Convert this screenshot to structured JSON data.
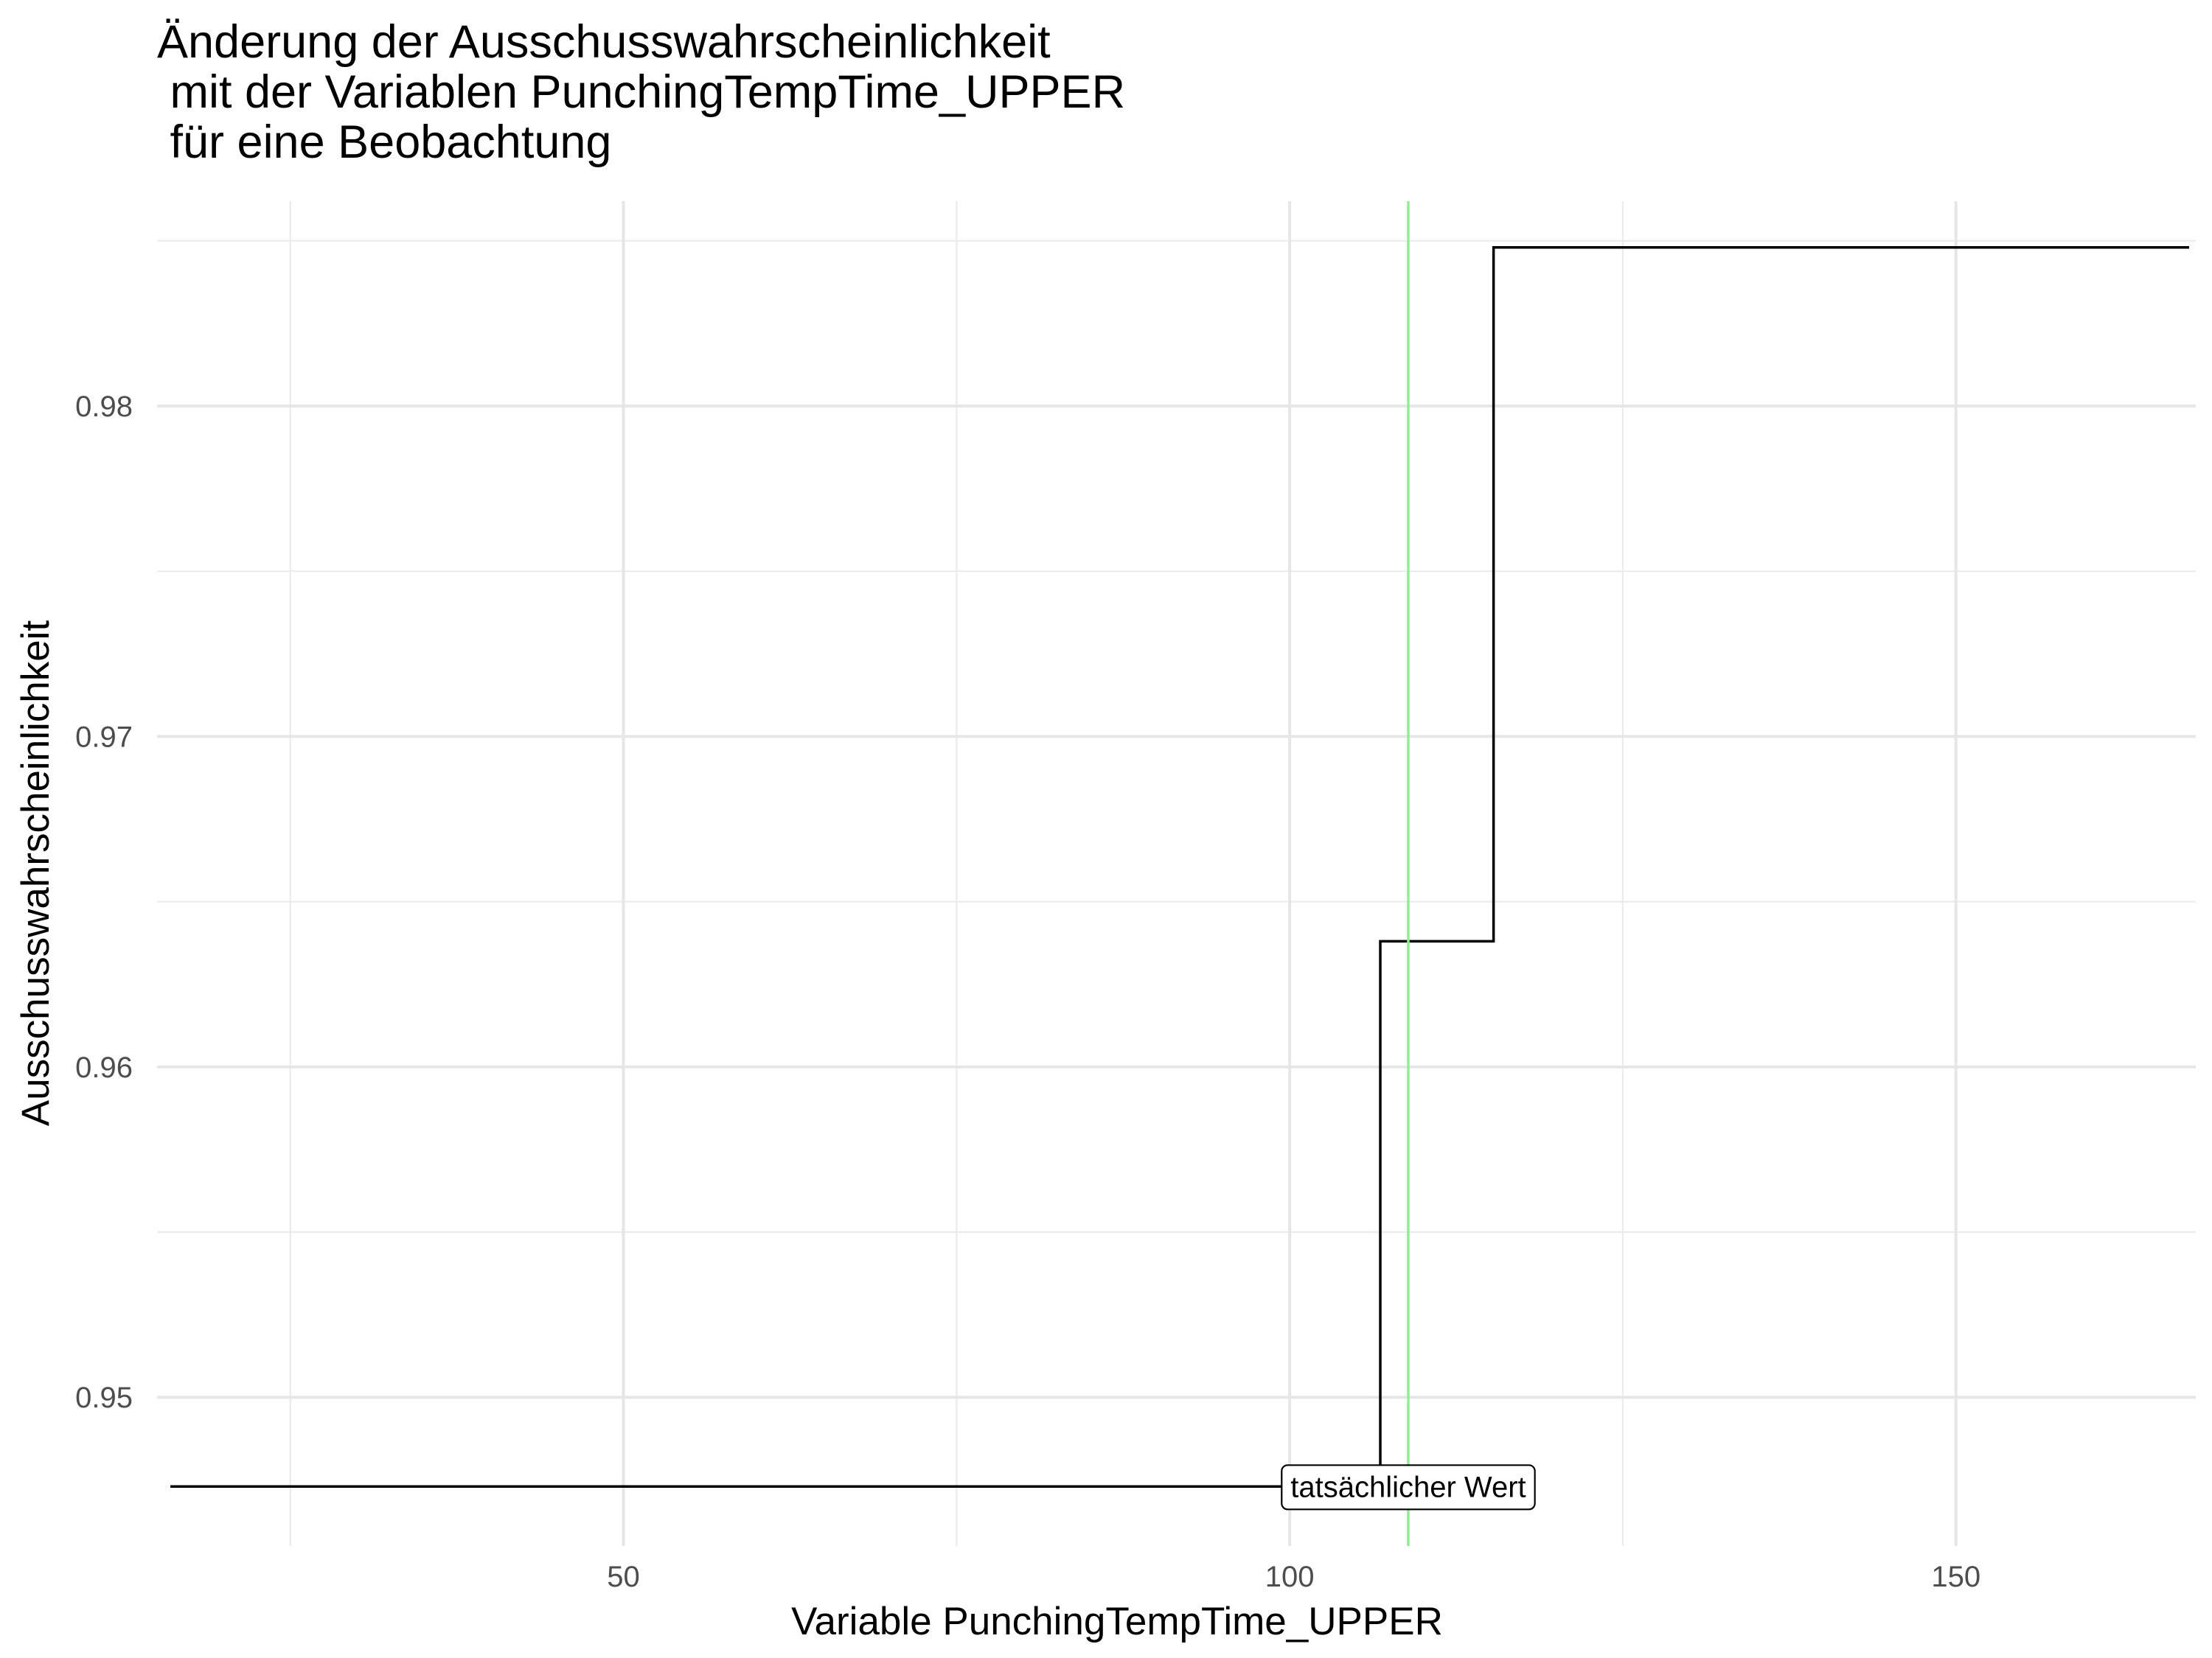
{
  "chart_data": {
    "type": "line",
    "title_lines": [
      "Änderung der Ausschusswahrscheinlichkeit",
      " mit der Variablen PunchingTempTime_UPPER",
      " für eine Beobachtung"
    ],
    "xlabel": "Variable PunchingTempTime_UPPER",
    "ylabel": "Ausschusswahrscheinlichkeit",
    "xlim": [
      15,
      168
    ],
    "ylim": [
      0.9455,
      0.9862
    ],
    "x_ticks": [
      {
        "value": 50,
        "label": "50"
      },
      {
        "value": 100,
        "label": "100"
      },
      {
        "value": 150,
        "label": "150"
      }
    ],
    "y_ticks": [
      {
        "value": 0.95,
        "label": "0.95"
      },
      {
        "value": 0.96,
        "label": "0.96"
      },
      {
        "value": 0.97,
        "label": "0.97"
      },
      {
        "value": 0.98,
        "label": "0.98"
      }
    ],
    "x_minor_grid": [
      25,
      75,
      125,
      175
    ],
    "y_minor_grid": [
      0.955,
      0.965,
      0.975,
      0.985
    ],
    "grid": true,
    "series": [
      {
        "step": "hv",
        "color": "#000000",
        "points": [
          {
            "x": 16,
            "y": 0.9473
          },
          {
            "x": 106.8,
            "y": 0.9638
          },
          {
            "x": 115.3,
            "y": 0.9848
          },
          {
            "x": 167.5,
            "y": 0.9848
          }
        ]
      }
    ],
    "vline": {
      "x": 108.9,
      "color": "#90ee90"
    },
    "annotation": {
      "text": "tatsächlicher Wert",
      "x": 108.9,
      "y": 0.9473
    }
  }
}
